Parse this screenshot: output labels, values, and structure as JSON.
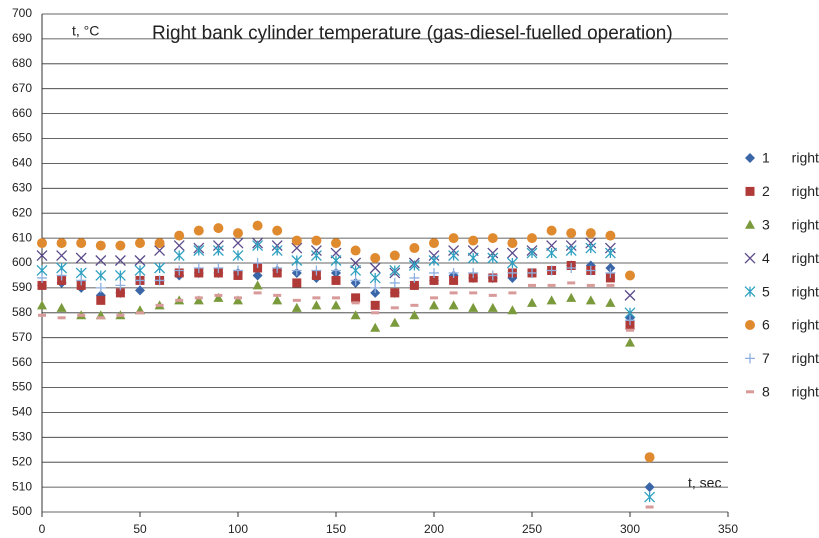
{
  "chart_data": {
    "type": "scatter",
    "title": "Right bank cylinder temperature (gas-diesel-fuelled operation)",
    "y_label": "t, °C",
    "x_label": "t, sec",
    "x": [
      0,
      10,
      20,
      30,
      40,
      50,
      60,
      70,
      80,
      90,
      100,
      110,
      120,
      130,
      140,
      150,
      160,
      170,
      180,
      190,
      200,
      210,
      220,
      230,
      240,
      250,
      260,
      270,
      280,
      290,
      300,
      310
    ],
    "xlim": [
      0,
      350
    ],
    "xticks": [
      0,
      50,
      100,
      150,
      200,
      250,
      300,
      350
    ],
    "ylim": [
      500,
      700
    ],
    "yticks": [
      500,
      510,
      520,
      530,
      540,
      550,
      560,
      570,
      580,
      590,
      600,
      610,
      620,
      630,
      640,
      650,
      660,
      670,
      680,
      690,
      700
    ],
    "grid": true,
    "legend": "right",
    "series": [
      {
        "name": "1 right",
        "color": "#3a66a8",
        "marker": "diamond",
        "values": [
          591,
          592,
          590,
          587,
          588,
          589,
          593,
          595,
          596,
          596,
          596,
          595,
          597,
          596,
          594,
          596,
          592,
          588,
          588,
          591,
          593,
          595,
          594,
          594,
          594,
          596,
          597,
          599,
          599,
          598,
          578,
          510
        ]
      },
      {
        "name": "2 right",
        "color": "#b03a38",
        "marker": "square",
        "values": [
          591,
          593,
          591,
          585,
          588,
          593,
          593,
          596,
          596,
          596,
          595,
          598,
          596,
          592,
          595,
          593,
          586,
          583,
          588,
          591,
          593,
          593,
          594,
          594,
          596,
          596,
          597,
          599,
          597,
          594,
          575,
          null
        ]
      },
      {
        "name": "3 right",
        "color": "#7a9a3c",
        "marker": "triangle",
        "values": [
          583,
          582,
          579,
          579,
          579,
          581,
          583,
          585,
          585,
          586,
          585,
          591,
          585,
          582,
          583,
          583,
          579,
          574,
          576,
          579,
          583,
          583,
          582,
          582,
          581,
          584,
          585,
          586,
          585,
          584,
          568,
          null
        ]
      },
      {
        "name": "4 right",
        "color": "#5b4a8a",
        "marker": "x",
        "values": [
          603,
          603,
          602,
          601,
          601,
          601,
          605,
          607,
          606,
          607,
          608,
          608,
          607,
          606,
          605,
          604,
          600,
          598,
          596,
          600,
          603,
          605,
          605,
          604,
          604,
          605,
          607,
          607,
          608,
          606,
          587,
          null
        ]
      },
      {
        "name": "5 right",
        "color": "#2fa0c0",
        "marker": "star",
        "values": [
          597,
          598,
          596,
          595,
          595,
          597,
          598,
          603,
          605,
          605,
          603,
          607,
          605,
          601,
          603,
          601,
          597,
          594,
          597,
          599,
          601,
          603,
          602,
          602,
          600,
          604,
          604,
          605,
          606,
          604,
          580,
          506
        ]
      },
      {
        "name": "6 right",
        "color": "#e08a30",
        "marker": "circle",
        "values": [
          608,
          608,
          608,
          607,
          607,
          608,
          608,
          611,
          613,
          614,
          612,
          615,
          613,
          609,
          609,
          608,
          605,
          602,
          603,
          606,
          608,
          610,
          609,
          610,
          608,
          610,
          613,
          612,
          612,
          611,
          595,
          522
        ]
      },
      {
        "name": "7 right",
        "color": "#8fb0e0",
        "marker": "plus",
        "values": [
          594,
          595,
          593,
          590,
          591,
          593,
          593,
          597,
          598,
          598,
          597,
          600,
          598,
          597,
          597,
          597,
          593,
          590,
          592,
          594,
          596,
          596,
          596,
          595,
          596,
          596,
          597,
          598,
          597,
          596,
          577,
          null
        ]
      },
      {
        "name": "8 right",
        "color": "#d99a9a",
        "marker": "dash",
        "values": [
          579,
          578,
          579,
          578,
          579,
          580,
          583,
          585,
          586,
          587,
          586,
          588,
          587,
          585,
          586,
          586,
          584,
          580,
          582,
          583,
          586,
          588,
          588,
          587,
          588,
          591,
          591,
          592,
          591,
          591,
          573,
          502
        ]
      }
    ]
  }
}
